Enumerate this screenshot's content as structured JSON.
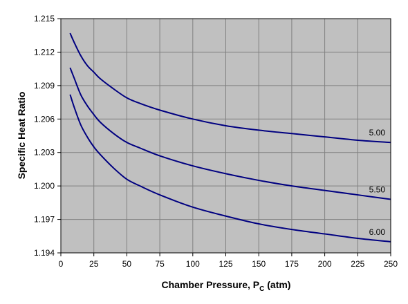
{
  "chart_data": {
    "type": "line",
    "title": "",
    "xlabel": {
      "main": "Chamber Pressure, P",
      "sub": "C",
      "unit": " (atm)"
    },
    "ylabel": "Specific Heat Ratio",
    "xlim": [
      0,
      250
    ],
    "ylim": [
      1.194,
      1.215
    ],
    "xticks": [
      0,
      25,
      50,
      75,
      100,
      125,
      150,
      175,
      200,
      225,
      250
    ],
    "yticks": [
      1.194,
      1.197,
      1.2,
      1.203,
      1.206,
      1.209,
      1.212,
      1.215
    ],
    "ytick_labels": [
      "1.194",
      "1.197",
      "1.200",
      "1.203",
      "1.206",
      "1.209",
      "1.212",
      "1.215"
    ],
    "grid": true,
    "plot_bg": "#c0c0c0",
    "line_color": "#000080",
    "series": [
      {
        "name": "5.00",
        "x": [
          7,
          10,
          15,
          20,
          25,
          30,
          40,
          50,
          60,
          75,
          100,
          125,
          150,
          175,
          200,
          225,
          250
        ],
        "y": [
          1.2137,
          1.2129,
          1.2117,
          1.2108,
          1.2102,
          1.2096,
          1.2087,
          1.2079,
          1.2074,
          1.2068,
          1.206,
          1.2054,
          1.205,
          1.2047,
          1.2044,
          1.2041,
          1.2039
        ]
      },
      {
        "name": "5.50",
        "x": [
          7,
          10,
          15,
          20,
          25,
          30,
          40,
          50,
          60,
          75,
          100,
          125,
          150,
          175,
          200,
          225,
          250
        ],
        "y": [
          1.2106,
          1.2097,
          1.2082,
          1.2072,
          1.2064,
          1.2057,
          1.2047,
          1.2039,
          1.2034,
          1.2027,
          1.2018,
          1.2011,
          1.2005,
          1.2,
          1.1996,
          1.1992,
          1.1988
        ]
      },
      {
        "name": "6.00",
        "x": [
          7,
          10,
          15,
          20,
          25,
          30,
          40,
          50,
          60,
          75,
          100,
          125,
          150,
          175,
          200,
          225,
          250
        ],
        "y": [
          1.2082,
          1.2071,
          1.2055,
          1.2044,
          1.2035,
          1.2028,
          1.2016,
          1.2006,
          1.2,
          1.1992,
          1.1981,
          1.1973,
          1.1966,
          1.1961,
          1.1957,
          1.1953,
          1.195
        ]
      }
    ]
  }
}
